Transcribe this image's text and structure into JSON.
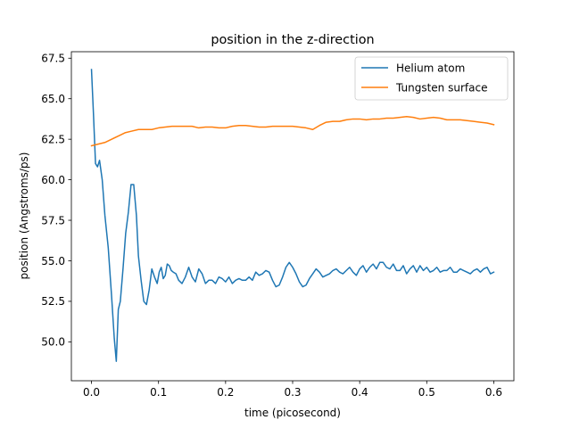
{
  "chart_data": {
    "type": "line",
    "title": "position in the z-direction",
    "xlabel": "time (picosecond)",
    "ylabel": "position (Angstroms/ps)",
    "xlim": [
      -0.03,
      0.63
    ],
    "ylim": [
      47.6,
      67.9
    ],
    "xticks": [
      0.0,
      0.1,
      0.2,
      0.3,
      0.4,
      0.5,
      0.6
    ],
    "xtick_labels": [
      "0.0",
      "0.1",
      "0.2",
      "0.3",
      "0.4",
      "0.5",
      "0.6"
    ],
    "yticks": [
      50.0,
      52.5,
      55.0,
      57.5,
      60.0,
      62.5,
      65.0,
      67.5
    ],
    "ytick_labels": [
      "50.0",
      "52.5",
      "55.0",
      "57.5",
      "60.0",
      "62.5",
      "65.0",
      "67.5"
    ],
    "grid": false,
    "legend_position": "top-right",
    "series": [
      {
        "name": "Helium atom",
        "color": "#1f77b4",
        "x": [
          0.0,
          0.003,
          0.006,
          0.009,
          0.012,
          0.016,
          0.02,
          0.025,
          0.03,
          0.034,
          0.037,
          0.04,
          0.043,
          0.047,
          0.051,
          0.055,
          0.059,
          0.063,
          0.067,
          0.07,
          0.074,
          0.078,
          0.082,
          0.086,
          0.09,
          0.094,
          0.098,
          0.101,
          0.104,
          0.107,
          0.11,
          0.113,
          0.116,
          0.119,
          0.122,
          0.126,
          0.13,
          0.135,
          0.14,
          0.145,
          0.15,
          0.155,
          0.16,
          0.165,
          0.17,
          0.175,
          0.18,
          0.185,
          0.19,
          0.195,
          0.2,
          0.205,
          0.21,
          0.215,
          0.22,
          0.225,
          0.23,
          0.235,
          0.24,
          0.245,
          0.25,
          0.255,
          0.26,
          0.265,
          0.27,
          0.275,
          0.28,
          0.285,
          0.29,
          0.295,
          0.3,
          0.305,
          0.31,
          0.315,
          0.32,
          0.325,
          0.33,
          0.335,
          0.34,
          0.345,
          0.35,
          0.355,
          0.36,
          0.365,
          0.37,
          0.375,
          0.38,
          0.385,
          0.39,
          0.395,
          0.4,
          0.405,
          0.41,
          0.415,
          0.42,
          0.425,
          0.43,
          0.435,
          0.44,
          0.445,
          0.45,
          0.455,
          0.46,
          0.465,
          0.47,
          0.475,
          0.48,
          0.485,
          0.49,
          0.495,
          0.5,
          0.505,
          0.51,
          0.515,
          0.52,
          0.525,
          0.53,
          0.535,
          0.54,
          0.545,
          0.55,
          0.555,
          0.56,
          0.565,
          0.57,
          0.575,
          0.58,
          0.585,
          0.59,
          0.595,
          0.6
        ],
        "y": [
          66.8,
          64.0,
          61.0,
          60.8,
          61.2,
          60.0,
          57.8,
          55.8,
          52.8,
          50.2,
          48.8,
          52.0,
          52.5,
          54.5,
          56.7,
          58.0,
          59.7,
          59.7,
          57.8,
          55.3,
          53.8,
          52.5,
          52.3,
          53.2,
          54.5,
          54.0,
          53.6,
          54.3,
          54.6,
          53.9,
          54.1,
          54.8,
          54.7,
          54.4,
          54.3,
          54.2,
          53.8,
          53.6,
          54.0,
          54.6,
          54.0,
          53.7,
          54.5,
          54.2,
          53.6,
          53.8,
          53.8,
          53.6,
          54.0,
          53.9,
          53.7,
          54.0,
          53.6,
          53.8,
          53.9,
          53.8,
          53.8,
          54.0,
          53.8,
          54.3,
          54.1,
          54.2,
          54.4,
          54.3,
          53.8,
          53.4,
          53.5,
          54.0,
          54.6,
          54.9,
          54.6,
          54.2,
          53.7,
          53.4,
          53.5,
          53.9,
          54.2,
          54.5,
          54.3,
          54.0,
          54.1,
          54.2,
          54.4,
          54.5,
          54.3,
          54.2,
          54.4,
          54.6,
          54.3,
          54.1,
          54.5,
          54.7,
          54.3,
          54.6,
          54.8,
          54.5,
          54.9,
          54.9,
          54.6,
          54.5,
          54.8,
          54.4,
          54.4,
          54.7,
          54.2,
          54.5,
          54.7,
          54.3,
          54.7,
          54.4,
          54.6,
          54.3,
          54.4,
          54.6,
          54.3,
          54.4,
          54.4,
          54.6,
          54.3,
          54.3,
          54.5,
          54.4,
          54.3,
          54.2,
          54.4,
          54.5,
          54.3,
          54.5,
          54.6,
          54.2,
          54.3
        ]
      },
      {
        "name": "Tungsten surface",
        "color": "#ff7f0e",
        "x": [
          0.0,
          0.01,
          0.02,
          0.03,
          0.04,
          0.05,
          0.06,
          0.07,
          0.08,
          0.09,
          0.1,
          0.11,
          0.12,
          0.13,
          0.14,
          0.15,
          0.16,
          0.17,
          0.18,
          0.19,
          0.2,
          0.21,
          0.22,
          0.23,
          0.24,
          0.25,
          0.26,
          0.27,
          0.28,
          0.29,
          0.3,
          0.31,
          0.32,
          0.33,
          0.34,
          0.35,
          0.36,
          0.37,
          0.38,
          0.39,
          0.4,
          0.41,
          0.42,
          0.43,
          0.44,
          0.45,
          0.46,
          0.47,
          0.48,
          0.49,
          0.5,
          0.51,
          0.52,
          0.53,
          0.54,
          0.55,
          0.56,
          0.57,
          0.58,
          0.59,
          0.6
        ],
        "y": [
          62.1,
          62.2,
          62.3,
          62.5,
          62.7,
          62.9,
          63.0,
          63.1,
          63.1,
          63.1,
          63.2,
          63.25,
          63.3,
          63.3,
          63.3,
          63.3,
          63.2,
          63.25,
          63.25,
          63.2,
          63.2,
          63.3,
          63.35,
          63.35,
          63.3,
          63.25,
          63.25,
          63.3,
          63.3,
          63.3,
          63.3,
          63.25,
          63.2,
          63.1,
          63.35,
          63.55,
          63.6,
          63.6,
          63.7,
          63.75,
          63.75,
          63.7,
          63.75,
          63.75,
          63.8,
          63.8,
          63.85,
          63.9,
          63.85,
          63.75,
          63.8,
          63.85,
          63.8,
          63.7,
          63.7,
          63.7,
          63.65,
          63.6,
          63.55,
          63.5,
          63.4
        ]
      }
    ]
  }
}
